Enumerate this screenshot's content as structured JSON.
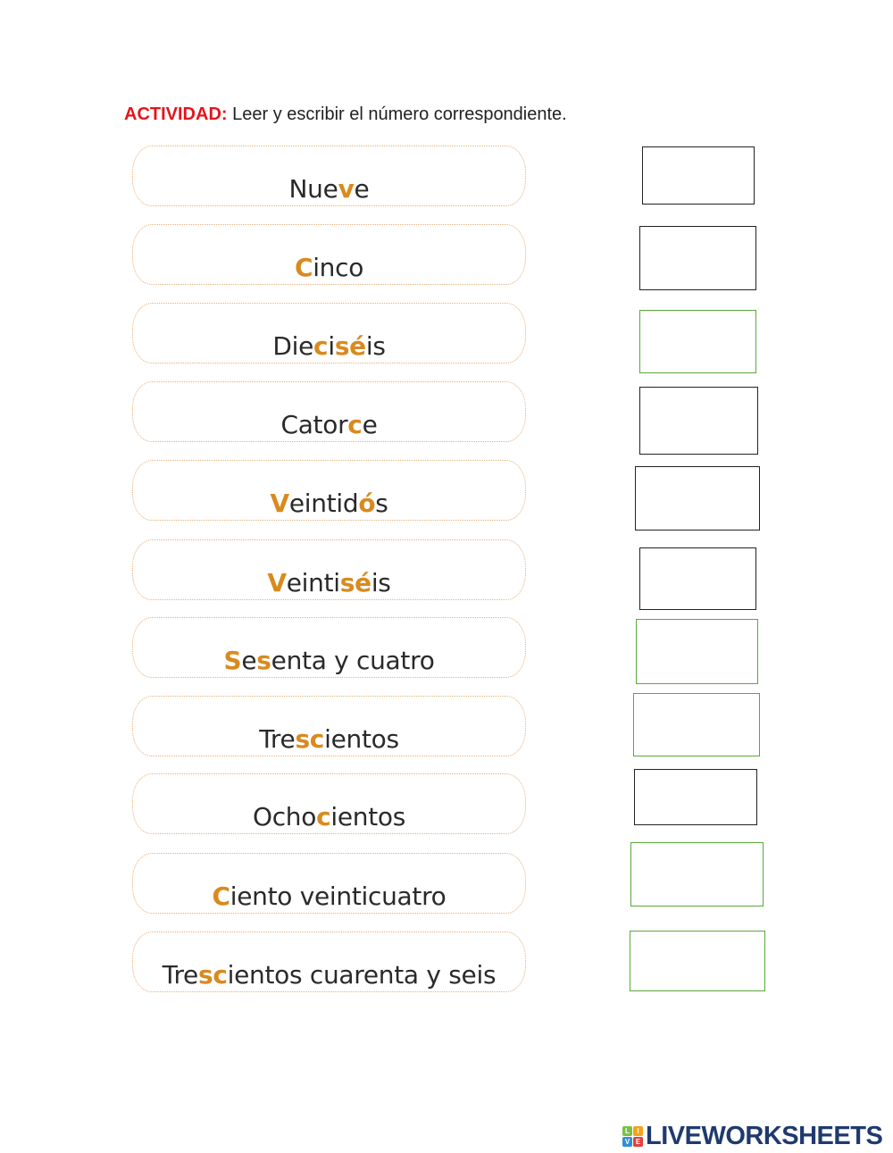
{
  "header": {
    "label": "ACTIVIDAD:",
    "instruction": " Leer y escribir el número correspondiente."
  },
  "colors": {
    "highlight": "#d98a1f",
    "label": "#e3151a",
    "box_black": "#222222",
    "box_green": "#5aa83c"
  },
  "items": [
    {
      "segments": [
        {
          "t": "Nue"
        },
        {
          "t": "v",
          "hl": true
        },
        {
          "t": "e"
        }
      ],
      "answer": "",
      "box_color": "#222222"
    },
    {
      "segments": [
        {
          "t": "C",
          "hl": true
        },
        {
          "t": "inco"
        }
      ],
      "answer": "",
      "box_color": "#222222"
    },
    {
      "segments": [
        {
          "t": "Die"
        },
        {
          "t": "c",
          "hl": true
        },
        {
          "t": "i"
        },
        {
          "t": "sé",
          "hl": true
        },
        {
          "t": "is"
        }
      ],
      "answer": "",
      "box_color": "#5aa83c"
    },
    {
      "segments": [
        {
          "t": "Cator"
        },
        {
          "t": "c",
          "hl": true
        },
        {
          "t": "e"
        }
      ],
      "answer": "",
      "box_color": "#222222"
    },
    {
      "segments": [
        {
          "t": "V",
          "hl": true
        },
        {
          "t": "eintid"
        },
        {
          "t": "ó",
          "hl": true
        },
        {
          "t": "s"
        }
      ],
      "answer": "",
      "box_color": "#222222"
    },
    {
      "segments": [
        {
          "t": "V",
          "hl": true
        },
        {
          "t": "einti"
        },
        {
          "t": "sé",
          "hl": true
        },
        {
          "t": "is"
        }
      ],
      "answer": "",
      "box_color": "#222222"
    },
    {
      "segments": [
        {
          "t": "S",
          "hl": true
        },
        {
          "t": "e"
        },
        {
          "t": "s",
          "hl": true
        },
        {
          "t": "enta y cuatro"
        }
      ],
      "answer": "",
      "box_color": "#5aa83c"
    },
    {
      "segments": [
        {
          "t": "Tre"
        },
        {
          "t": "sc",
          "hl": true
        },
        {
          "t": "ientos"
        }
      ],
      "answer": "",
      "box_color": "#5aa83c"
    },
    {
      "segments": [
        {
          "t": "Ocho"
        },
        {
          "t": "c",
          "hl": true
        },
        {
          "t": "ientos"
        }
      ],
      "answer": "",
      "box_color": "#222222"
    },
    {
      "segments": [
        {
          "t": "C",
          "hl": true
        },
        {
          "t": "iento veinticuatro"
        }
      ],
      "answer": "",
      "box_color": "#5aa83c"
    },
    {
      "segments": [
        {
          "t": "Tre"
        },
        {
          "t": "sc",
          "hl": true
        },
        {
          "t": "ientos cuarenta y seis"
        }
      ],
      "answer": "",
      "box_color": "#5aa83c"
    }
  ],
  "logo": {
    "tiles": [
      "L",
      "I",
      "V",
      "E"
    ],
    "tile_colors": [
      "#7ac143",
      "#f7a21b",
      "#2f8fd8",
      "#e2403b"
    ],
    "text": "LIVEWORKSHEETS"
  }
}
